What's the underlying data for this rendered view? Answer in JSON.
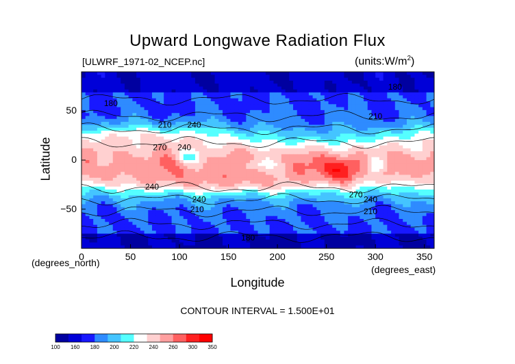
{
  "chart_data": {
    "type": "heatmap",
    "title": "Upward Longwave Radiation Flux",
    "source_label": "[ULWRF_1971-02_NCEP.nc]",
    "units_label": "(units:W/m^2)",
    "xlabel": "Longitude",
    "ylabel": "Latitude",
    "x_unit_label": "(degrees_east)",
    "y_unit_label": "(degrees_north)",
    "xlim": [
      0,
      360
    ],
    "ylim": [
      -90,
      90
    ],
    "x_ticks": [
      0,
      50,
      100,
      150,
      200,
      250,
      300,
      350
    ],
    "y_ticks": [
      -50,
      0,
      50
    ],
    "contour_interval_text": "CONTOUR INTERVAL = 1.500E+01",
    "contour_labels": [
      {
        "text": "180",
        "lon": 30,
        "lat": 55
      },
      {
        "text": "210",
        "lon": 85,
        "lat": 33
      },
      {
        "text": "240",
        "lon": 115,
        "lat": 33
      },
      {
        "text": "270",
        "lon": 80,
        "lat": 10
      },
      {
        "text": "240",
        "lon": 105,
        "lat": 10
      },
      {
        "text": "210",
        "lon": 300,
        "lat": 42
      },
      {
        "text": "180",
        "lon": 320,
        "lat": 72
      },
      {
        "text": "240",
        "lon": 72,
        "lat": -30
      },
      {
        "text": "240",
        "lon": 120,
        "lat": -43
      },
      {
        "text": "210",
        "lon": 118,
        "lat": -53
      },
      {
        "text": "270",
        "lon": 280,
        "lat": -38
      },
      {
        "text": "240",
        "lon": 295,
        "lat": -43
      },
      {
        "text": "210",
        "lon": 295,
        "lat": -55
      },
      {
        "text": "180",
        "lon": 170,
        "lat": -82
      }
    ],
    "colorbar": {
      "levels": [
        100,
        160,
        180,
        200,
        220,
        240,
        260,
        300,
        350
      ],
      "colors": [
        "#0000a0",
        "#0000d8",
        "#1818ff",
        "#2e8bff",
        "#44c4ff",
        "#55ffff",
        "#ffffff",
        "#ffd0d0",
        "#ff9f9f",
        "#ff6060",
        "#ff2020",
        "#ff0000"
      ]
    }
  }
}
